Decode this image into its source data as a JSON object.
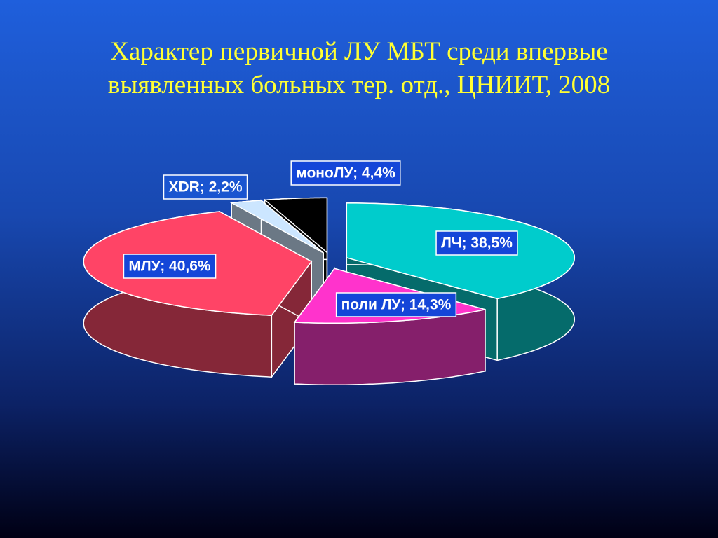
{
  "chart_data": {
    "type": "pie3d",
    "title": "Характер первичной ЛУ МБТ среди впервые выявленных больных тер. отд., ЦНИИТ, 2008",
    "values": [
      38.5,
      14.3,
      40.6,
      2.2,
      4.4
    ],
    "value_labels": [
      "ЛЧ; 38,5%",
      "поли ЛУ; 14,3%",
      "МЛУ; 40,6%",
      "XDR; 2,2%",
      "моноЛУ; 4,4%"
    ],
    "colors": [
      "#00cccc",
      "#ff33cc",
      "#ff4466",
      "#cce6ff",
      "#000000"
    ]
  }
}
